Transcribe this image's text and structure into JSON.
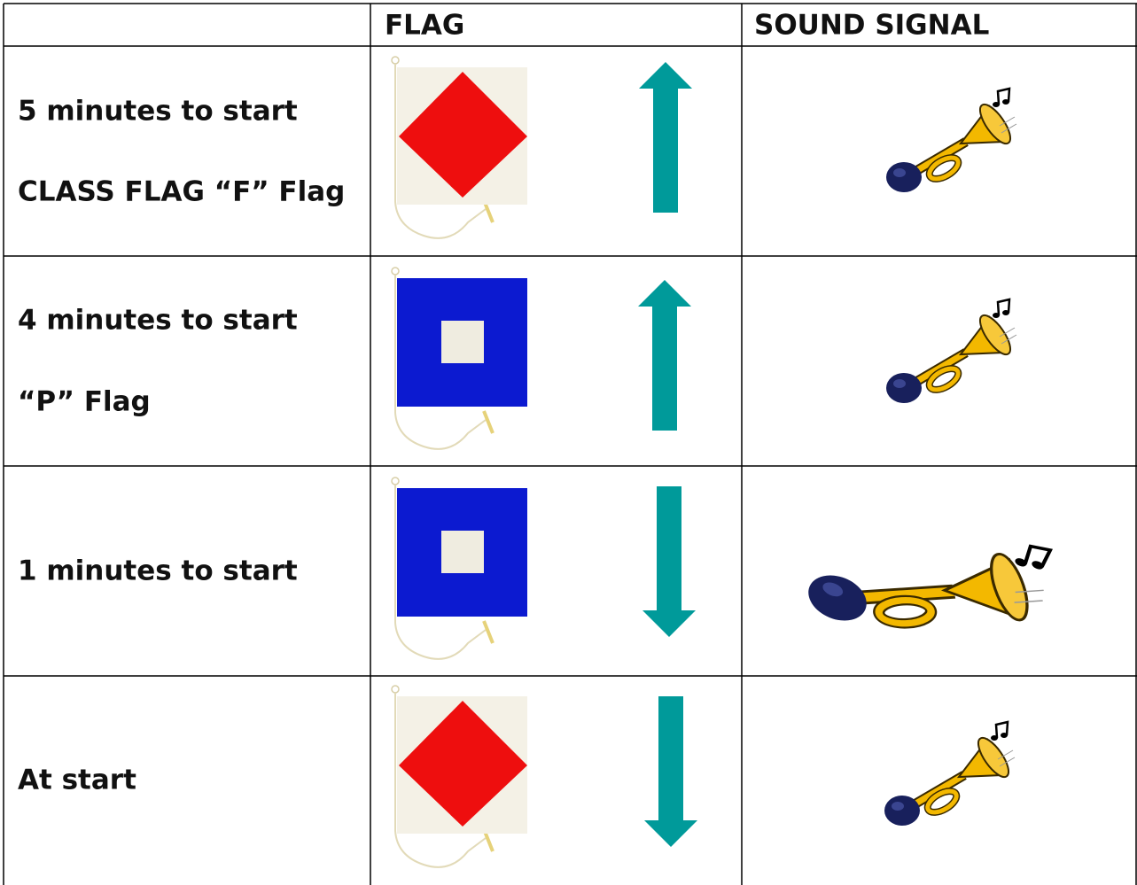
{
  "header": {
    "flag": "FLAG",
    "sound_signal": "SOUND SIGNAL"
  },
  "rows": [
    {
      "lines": [
        "5 minutes to start",
        "CLASS FLAG “F” Flag"
      ]
    },
    {
      "lines": [
        "4 minutes to start",
        "“P” Flag"
      ]
    },
    {
      "lines": [
        "1 minutes to start"
      ]
    },
    {
      "lines": [
        "At start"
      ]
    }
  ]
}
